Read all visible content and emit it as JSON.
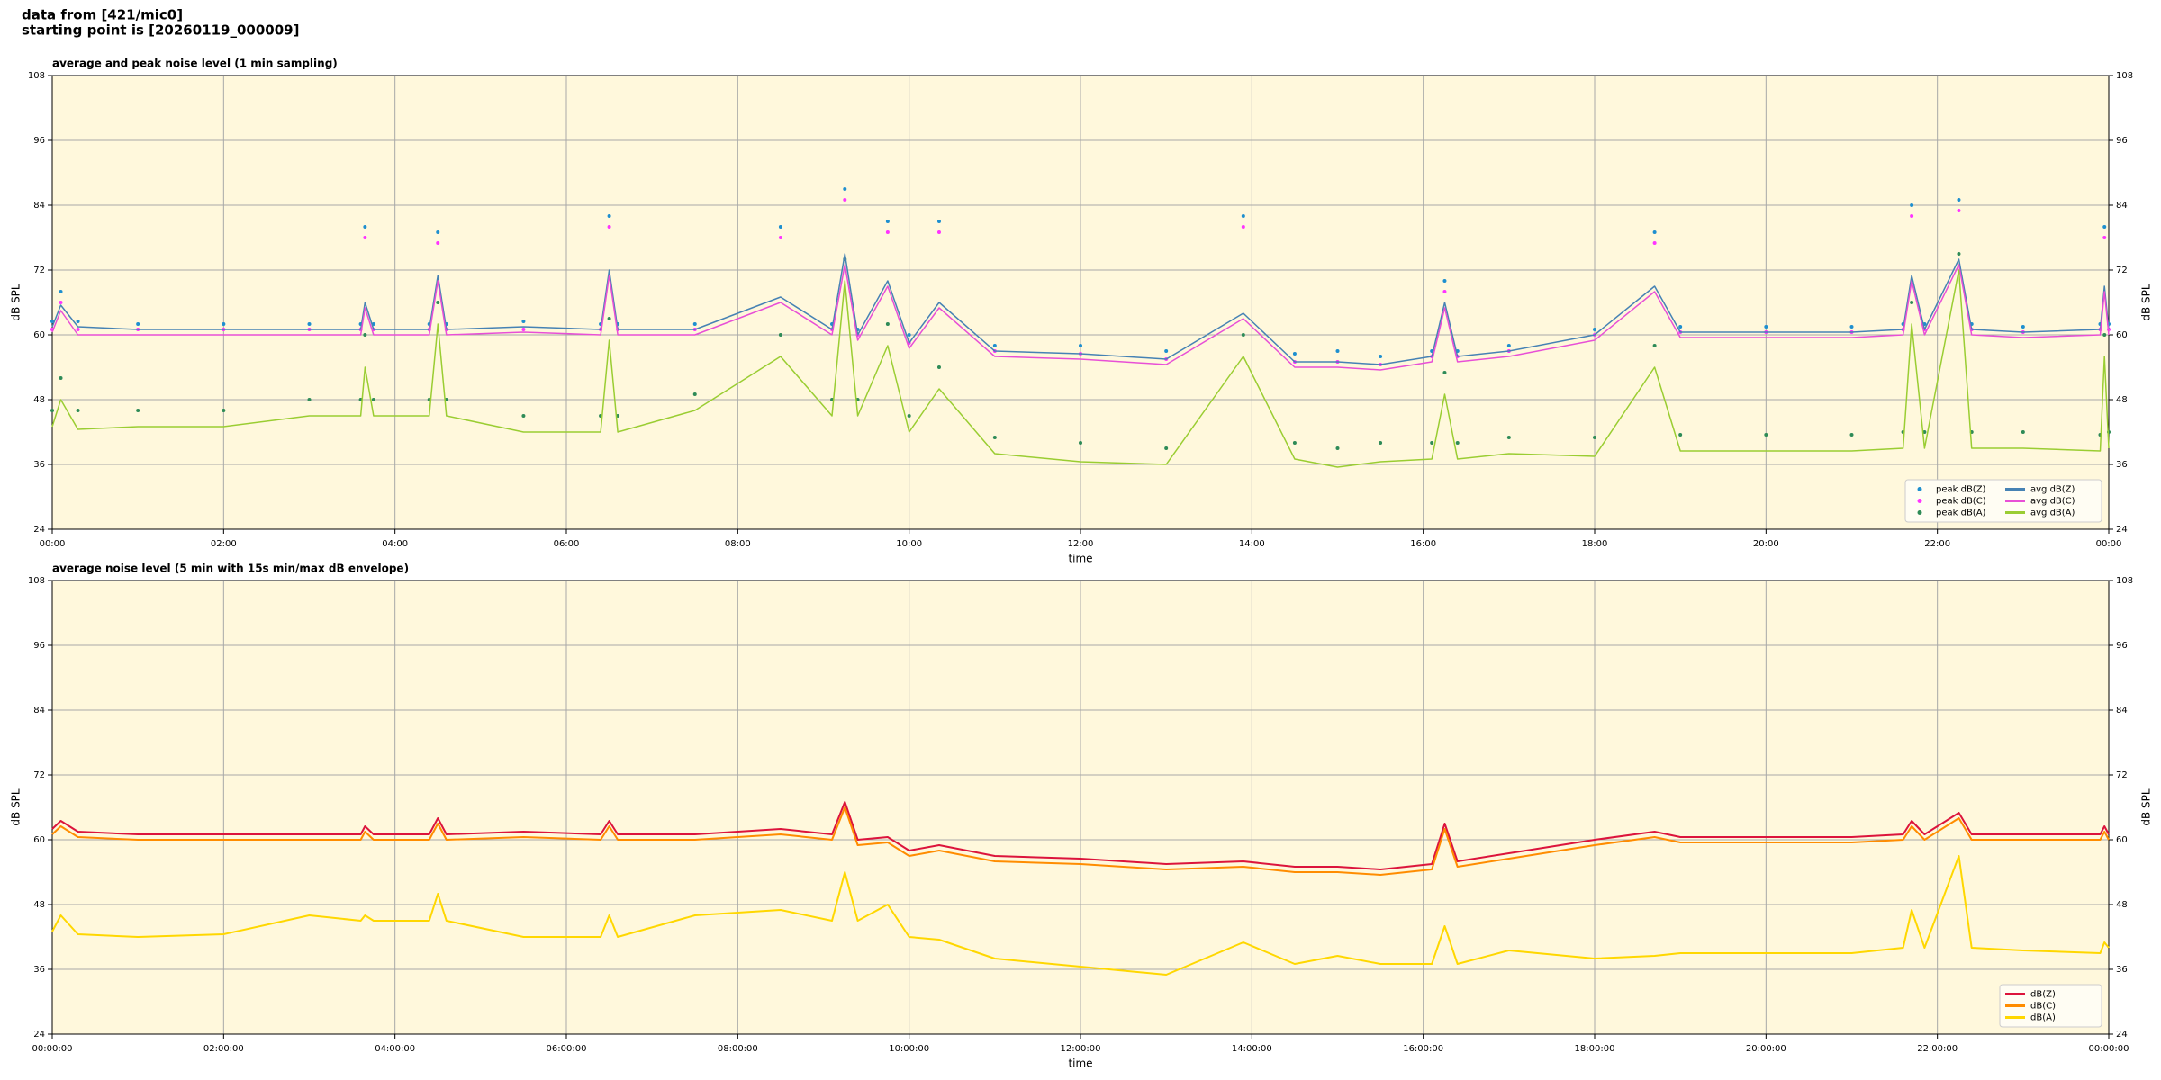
{
  "header": [
    "data from [421/mic0]",
    "starting point is [20260119_000009]"
  ],
  "chart_data": [
    {
      "type": "line",
      "title": "average and peak noise level (1 min sampling)",
      "x_label": "time",
      "y_label": "dB SPL",
      "background": "#fff8dc",
      "grid": true,
      "legend": "lower right",
      "legend_cols": 2,
      "xlim": [
        0,
        24
      ],
      "ylim": [
        24,
        108
      ],
      "yticks": [
        24,
        36,
        48,
        60,
        72,
        84,
        96,
        108
      ],
      "xticks": [
        {
          "value": 0,
          "label": "00:00"
        },
        {
          "value": 2,
          "label": "02:00"
        },
        {
          "value": 4,
          "label": "04:00"
        },
        {
          "value": 6,
          "label": "06:00"
        },
        {
          "value": 8,
          "label": "08:00"
        },
        {
          "value": 10,
          "label": "10:00"
        },
        {
          "value": 12,
          "label": "12:00"
        },
        {
          "value": 14,
          "label": "14:00"
        },
        {
          "value": 16,
          "label": "16:00"
        },
        {
          "value": 18,
          "label": "18:00"
        },
        {
          "value": 20,
          "label": "20:00"
        },
        {
          "value": 22,
          "label": "22:00"
        },
        {
          "value": 24,
          "label": "00:00"
        }
      ],
      "x": [
        0,
        0.1,
        0.3,
        1,
        2,
        3,
        3.6,
        3.65,
        3.75,
        4.4,
        4.5,
        4.6,
        5.5,
        6.4,
        6.5,
        6.6,
        7.5,
        8.5,
        9.1,
        9.25,
        9.4,
        9.75,
        10,
        10.35,
        11,
        12,
        13,
        13.9,
        14.5,
        15,
        15.5,
        16.1,
        16.25,
        16.4,
        17,
        18,
        18.7,
        19,
        20,
        21,
        21.6,
        21.7,
        21.85,
        22.25,
        22.4,
        23,
        23.9,
        23.95,
        24
      ],
      "series": [
        {
          "name": "peak dB(Z)",
          "type": "scatter",
          "color": "#1e8fcf",
          "values": [
            62.5,
            68,
            62.5,
            62,
            62,
            62,
            62,
            80,
            62,
            62,
            79,
            62,
            62.5,
            62,
            82,
            62,
            62,
            80,
            62,
            87,
            61,
            81,
            60,
            81,
            58,
            58,
            57,
            82,
            56.5,
            57,
            56,
            57,
            70,
            57,
            58,
            61,
            79,
            61.5,
            61.5,
            61.5,
            62,
            84,
            62,
            85,
            62,
            61.5,
            62,
            80,
            62
          ]
        },
        {
          "name": "peak dB(C)",
          "type": "scatter",
          "color": "#ff33ff",
          "values": [
            61,
            66,
            61,
            61,
            61,
            61,
            61,
            78,
            61,
            61,
            77,
            61,
            61,
            61,
            80,
            61,
            61,
            78,
            61,
            85,
            60,
            79,
            58.5,
            79,
            57,
            56.5,
            55.5,
            80,
            55,
            55,
            54.5,
            56,
            68,
            56,
            57,
            60,
            77,
            60.5,
            60.5,
            60.5,
            61,
            82,
            61,
            83,
            61,
            60.5,
            61,
            78,
            61
          ]
        },
        {
          "name": "peak dB(A)",
          "type": "scatter",
          "color": "#2e8b57",
          "values": [
            46,
            52,
            46,
            46,
            46,
            48,
            48,
            60,
            48,
            48,
            66,
            48,
            45,
            45,
            63,
            45,
            49,
            60,
            48,
            74,
            48,
            62,
            45,
            54,
            41,
            40,
            39,
            60,
            40,
            39,
            40,
            40,
            53,
            40,
            41,
            41,
            58,
            41.5,
            41.5,
            41.5,
            42,
            66,
            42,
            75,
            42,
            42,
            41.5,
            60,
            42
          ]
        },
        {
          "name": "avg dB(Z)",
          "type": "line",
          "color": "#4682b4",
          "values": [
            61.5,
            65.5,
            61.5,
            61,
            61,
            61,
            61,
            66,
            61,
            61,
            71,
            61,
            61.5,
            61,
            72,
            61,
            61,
            67,
            61,
            75,
            60,
            70,
            58.5,
            66,
            57,
            56.5,
            55.5,
            64,
            55,
            55,
            54.5,
            56,
            66,
            56,
            57,
            60,
            69,
            60.5,
            60.5,
            60.5,
            61,
            71,
            61,
            74,
            61,
            60.5,
            61,
            69,
            61
          ]
        },
        {
          "name": "avg dB(C)",
          "type": "line",
          "color": "#e84fd6",
          "values": [
            60.5,
            64.5,
            60,
            60,
            60,
            60,
            60,
            65,
            60,
            60,
            70,
            60,
            60.5,
            60,
            71,
            60,
            60,
            66,
            60,
            73,
            59,
            69,
            57.5,
            65,
            56,
            55.5,
            54.5,
            63,
            54,
            54,
            53.5,
            55,
            65,
            55,
            56,
            59,
            68,
            59.5,
            59.5,
            59.5,
            60,
            70,
            60,
            73,
            60,
            59.5,
            60,
            68,
            60
          ]
        },
        {
          "name": "avg dB(A)",
          "type": "line",
          "color": "#9acd32",
          "values": [
            43,
            48,
            42.5,
            43,
            43,
            45,
            45,
            54,
            45,
            45,
            62,
            45,
            42,
            42,
            59,
            42,
            46,
            56,
            45,
            70,
            45,
            58,
            42,
            50,
            38,
            36.5,
            36,
            56,
            37,
            35.5,
            36.5,
            37,
            49,
            37,
            38,
            37.5,
            54,
            38.5,
            38.5,
            38.5,
            39,
            62,
            39,
            72,
            39,
            39,
            38.5,
            56,
            39
          ]
        }
      ]
    },
    {
      "type": "line",
      "title": "average noise level (5 min with 15s min/max dB envelope)",
      "x_label": "time",
      "y_label": "dB SPL",
      "background": "#fff8dc",
      "grid": true,
      "legend": "lower right",
      "legend_cols": 1,
      "xlim": [
        0,
        24
      ],
      "ylim": [
        24,
        108
      ],
      "yticks": [
        24,
        36,
        48,
        60,
        72,
        84,
        96,
        108
      ],
      "xticks": [
        {
          "value": 0,
          "label": "00:00:00"
        },
        {
          "value": 2,
          "label": "02:00:00"
        },
        {
          "value": 4,
          "label": "04:00:00"
        },
        {
          "value": 6,
          "label": "06:00:00"
        },
        {
          "value": 8,
          "label": "08:00:00"
        },
        {
          "value": 10,
          "label": "10:00:00"
        },
        {
          "value": 12,
          "label": "12:00:00"
        },
        {
          "value": 14,
          "label": "14:00:00"
        },
        {
          "value": 16,
          "label": "16:00:00"
        },
        {
          "value": 18,
          "label": "18:00:00"
        },
        {
          "value": 20,
          "label": "20:00:00"
        },
        {
          "value": 22,
          "label": "22:00:00"
        },
        {
          "value": 24,
          "label": "00:00:00"
        }
      ],
      "x": [
        0,
        0.1,
        0.3,
        1,
        2,
        3,
        3.6,
        3.65,
        3.75,
        4.4,
        4.5,
        4.6,
        5.5,
        6.4,
        6.5,
        6.6,
        7.5,
        8.5,
        9.1,
        9.25,
        9.4,
        9.75,
        10,
        10.35,
        11,
        12,
        13,
        13.9,
        14.5,
        15,
        15.5,
        16.1,
        16.25,
        16.4,
        17,
        18,
        18.7,
        19,
        20,
        21,
        21.6,
        21.7,
        21.85,
        22.25,
        22.4,
        23,
        23.9,
        23.95,
        24
      ],
      "series": [
        {
          "name": "dB(Z)",
          "type": "line",
          "color": "#dc143c",
          "values": [
            62,
            63.5,
            61.5,
            61,
            61,
            61,
            61,
            62.5,
            61,
            61,
            64,
            61,
            61.5,
            61,
            63.5,
            61,
            61,
            62,
            61,
            67,
            60,
            60.5,
            58,
            59,
            57,
            56.5,
            55.5,
            56,
            55,
            55,
            54.5,
            55.5,
            63,
            56,
            57.5,
            60,
            61.5,
            60.5,
            60.5,
            60.5,
            61,
            63.5,
            61,
            65,
            61,
            61,
            61,
            62.5,
            61
          ]
        },
        {
          "name": "dB(C)",
          "type": "line",
          "color": "#ff8c00",
          "values": [
            61,
            62.5,
            60.5,
            60,
            60,
            60,
            60,
            61.5,
            60,
            60,
            63,
            60,
            60.5,
            60,
            62.5,
            60,
            60,
            61,
            60,
            66,
            59,
            59.5,
            57,
            58,
            56,
            55.5,
            54.5,
            55,
            54,
            54,
            53.5,
            54.5,
            62,
            55,
            56.5,
            59,
            60.5,
            59.5,
            59.5,
            59.5,
            60,
            62.5,
            60,
            64,
            60,
            60,
            60,
            61.5,
            60
          ]
        },
        {
          "name": "dB(A)",
          "type": "line",
          "color": "#ffd700",
          "values": [
            43,
            46,
            42.5,
            42,
            42.5,
            46,
            45,
            46,
            45,
            45,
            50,
            45,
            42,
            42,
            46,
            42,
            46,
            47,
            45,
            54,
            45,
            48,
            42,
            41.5,
            38,
            36.5,
            35,
            41,
            37,
            38.5,
            37,
            37,
            44,
            37,
            39.5,
            38,
            38.5,
            39,
            39,
            39,
            40,
            47,
            40,
            57,
            40,
            39.5,
            39,
            41,
            40
          ]
        }
      ]
    }
  ]
}
